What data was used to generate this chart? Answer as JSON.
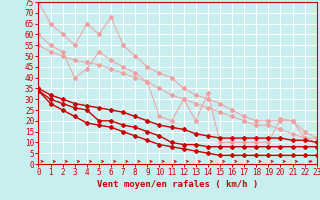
{
  "xlabel": "Vent moyen/en rafales ( km/h )",
  "xlim": [
    0,
    23
  ],
  "ylim": [
    0,
    75
  ],
  "yticks": [
    0,
    5,
    10,
    15,
    20,
    25,
    30,
    35,
    40,
    45,
    50,
    55,
    60,
    65,
    70,
    75
  ],
  "xticks": [
    0,
    1,
    2,
    3,
    4,
    5,
    6,
    7,
    8,
    9,
    10,
    11,
    12,
    13,
    14,
    15,
    16,
    17,
    18,
    19,
    20,
    21,
    22,
    23
  ],
  "background_color": "#c8eef0",
  "grid_color": "#ffffff",
  "line1_x": [
    0,
    1,
    2,
    3,
    4,
    5,
    6,
    7,
    8,
    9,
    10,
    11,
    12,
    13,
    14,
    15,
    16,
    17,
    18,
    19,
    20,
    21,
    22,
    23
  ],
  "line1_y": [
    75,
    65,
    60,
    55,
    65,
    60,
    68,
    55,
    50,
    45,
    42,
    40,
    35,
    32,
    30,
    28,
    25,
    22,
    20,
    20,
    20,
    20,
    15,
    12
  ],
  "line1_color": "#f0a0a0",
  "line2_x": [
    0,
    1,
    2,
    3,
    4,
    5,
    6,
    7,
    8,
    9,
    10,
    11,
    12,
    13,
    14,
    15,
    16,
    17,
    18,
    19,
    20,
    21,
    22,
    23
  ],
  "line2_y": [
    60,
    55,
    52,
    40,
    44,
    52,
    48,
    45,
    42,
    38,
    22,
    20,
    30,
    20,
    33,
    10,
    10,
    10,
    10,
    10,
    21,
    20,
    12,
    12
  ],
  "line2_color": "#f0a0a0",
  "line3_x": [
    0,
    1,
    2,
    3,
    4,
    5,
    6,
    7,
    8,
    9,
    10,
    11,
    12,
    13,
    14,
    15,
    16,
    17,
    18,
    19,
    20,
    21,
    22,
    23
  ],
  "line3_y": [
    55,
    52,
    50,
    48,
    47,
    46,
    44,
    42,
    40,
    38,
    35,
    32,
    30,
    28,
    26,
    24,
    22,
    20,
    18,
    18,
    16,
    14,
    12,
    10
  ],
  "line3_color": "#f0a0a0",
  "line4_x": [
    0,
    1,
    2,
    3,
    4,
    5,
    6,
    7,
    8,
    9,
    10,
    11,
    12,
    13,
    14,
    15,
    16,
    17,
    18,
    19,
    20,
    21,
    22,
    23
  ],
  "line4_y": [
    35,
    32,
    30,
    28,
    27,
    26,
    25,
    24,
    22,
    20,
    18,
    17,
    16,
    14,
    13,
    12,
    12,
    12,
    12,
    12,
    12,
    11,
    11,
    10
  ],
  "line4_color": "#cc0000",
  "line5_x": [
    0,
    1,
    2,
    3,
    4,
    5,
    6,
    7,
    8,
    9,
    10,
    11,
    12,
    13,
    14,
    15,
    16,
    17,
    18,
    19,
    20,
    21,
    22,
    23
  ],
  "line5_y": [
    34,
    30,
    28,
    26,
    25,
    20,
    20,
    18,
    17,
    15,
    13,
    10,
    9,
    9,
    8,
    8,
    8,
    8,
    8,
    8,
    8,
    8,
    8,
    8
  ],
  "line5_color": "#cc0000",
  "line6_x": [
    0,
    1,
    2,
    3,
    4,
    5,
    6,
    7,
    8,
    9,
    10,
    11,
    12,
    13,
    14,
    15,
    16,
    17,
    18,
    19,
    20,
    21,
    22,
    23
  ],
  "line6_y": [
    34,
    28,
    25,
    22,
    19,
    18,
    17,
    15,
    13,
    11,
    9,
    8,
    7,
    6,
    5,
    4,
    4,
    4,
    4,
    4,
    4,
    4,
    4,
    4
  ],
  "line6_color": "#cc0000",
  "arrow_color": "#cc0000",
  "tick_color": "#cc0000",
  "tick_fontsize": 5.5,
  "xlabel_fontsize": 6.5
}
